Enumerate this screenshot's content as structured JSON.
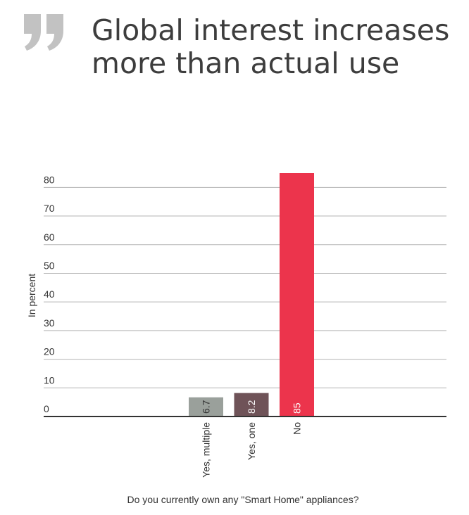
{
  "header": {
    "title": "Global interest increases more than actual use",
    "quote_icon": "quote-mark-icon"
  },
  "chart_data": {
    "type": "bar",
    "title": "Global interest increases more than actual use",
    "xlabel": "Do you currently own any \"Smart Home\" appliances?",
    "ylabel": "In percent",
    "categories": [
      "Yes, multiple",
      "Yes, one",
      "No"
    ],
    "values": [
      6.7,
      8.2,
      85
    ],
    "data_labels": [
      "6.7",
      "8.2",
      "85"
    ],
    "colors": [
      "#9aa09b",
      "#6f5358",
      "#ec344c"
    ],
    "ylim": [
      0,
      85
    ],
    "yticks": [
      0,
      10,
      20,
      30,
      40,
      50,
      60,
      70,
      80
    ],
    "grid": true
  }
}
